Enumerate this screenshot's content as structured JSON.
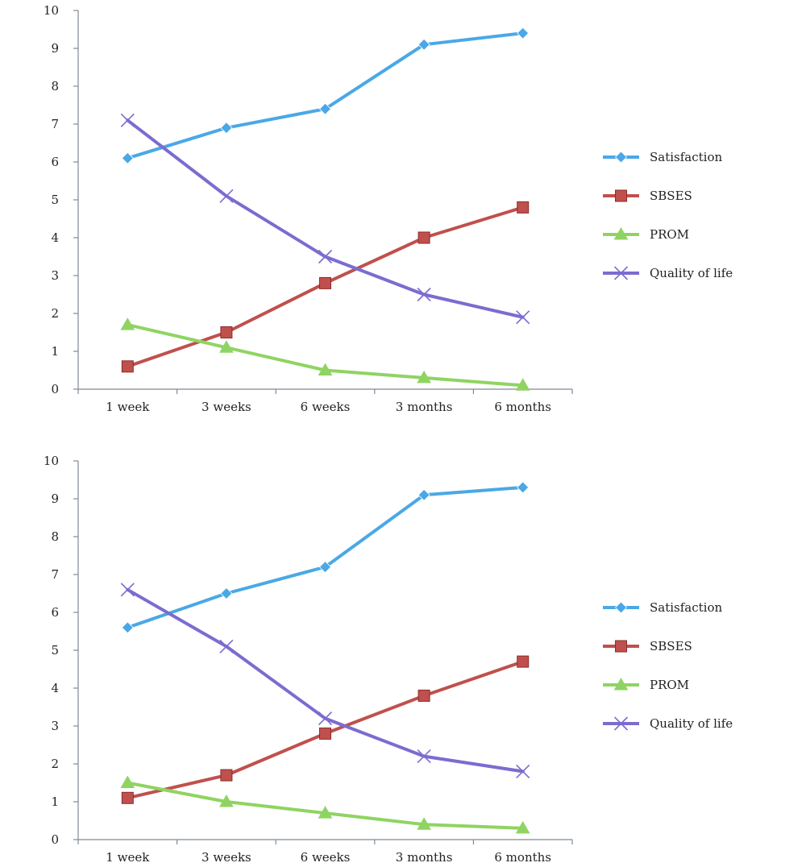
{
  "chart_data": [
    {
      "type": "line",
      "title": "",
      "xlabel": "",
      "ylabel": "",
      "ylim": [
        0,
        10
      ],
      "yticks": [
        0,
        1,
        2,
        3,
        4,
        5,
        6,
        7,
        8,
        9,
        10
      ],
      "categories": [
        "1 week",
        "3 weeks",
        "6 weeks",
        "3 months",
        "6 months"
      ],
      "grid": false,
      "legend_position": "right",
      "series": [
        {
          "name": "Satisfaction",
          "color": "#4aa8e6",
          "marker": "diamond",
          "values": [
            6.1,
            6.9,
            7.4,
            9.1,
            9.4
          ]
        },
        {
          "name": "SBSES",
          "color": "#c0504d",
          "marker": "square",
          "values": [
            0.6,
            1.5,
            2.8,
            4.0,
            4.8
          ]
        },
        {
          "name": "PROM",
          "color": "#8fd462",
          "marker": "triangle",
          "values": [
            1.7,
            1.1,
            0.5,
            0.3,
            0.1
          ]
        },
        {
          "name": "Quality of life",
          "color": "#7b6cd0",
          "marker": "x",
          "values": [
            7.1,
            5.1,
            3.5,
            2.5,
            1.9
          ]
        }
      ]
    },
    {
      "type": "line",
      "title": "",
      "xlabel": "",
      "ylabel": "",
      "ylim": [
        0,
        10
      ],
      "yticks": [
        0,
        1,
        2,
        3,
        4,
        5,
        6,
        7,
        8,
        9,
        10
      ],
      "categories": [
        "1 week",
        "3 weeks",
        "6 weeks",
        "3 months",
        "6 months"
      ],
      "grid": false,
      "legend_position": "right",
      "series": [
        {
          "name": "Satisfaction",
          "color": "#4aa8e6",
          "marker": "diamond",
          "values": [
            5.6,
            6.5,
            7.2,
            9.1,
            9.3
          ]
        },
        {
          "name": "SBSES",
          "color": "#c0504d",
          "marker": "square",
          "values": [
            1.1,
            1.7,
            2.8,
            3.8,
            4.7
          ]
        },
        {
          "name": "PROM",
          "color": "#8fd462",
          "marker": "triangle",
          "values": [
            1.5,
            1.0,
            0.7,
            0.4,
            0.3
          ]
        },
        {
          "name": "Quality of life",
          "color": "#7b6cd0",
          "marker": "x",
          "values": [
            6.6,
            5.1,
            3.2,
            2.2,
            1.8
          ]
        }
      ]
    }
  ]
}
